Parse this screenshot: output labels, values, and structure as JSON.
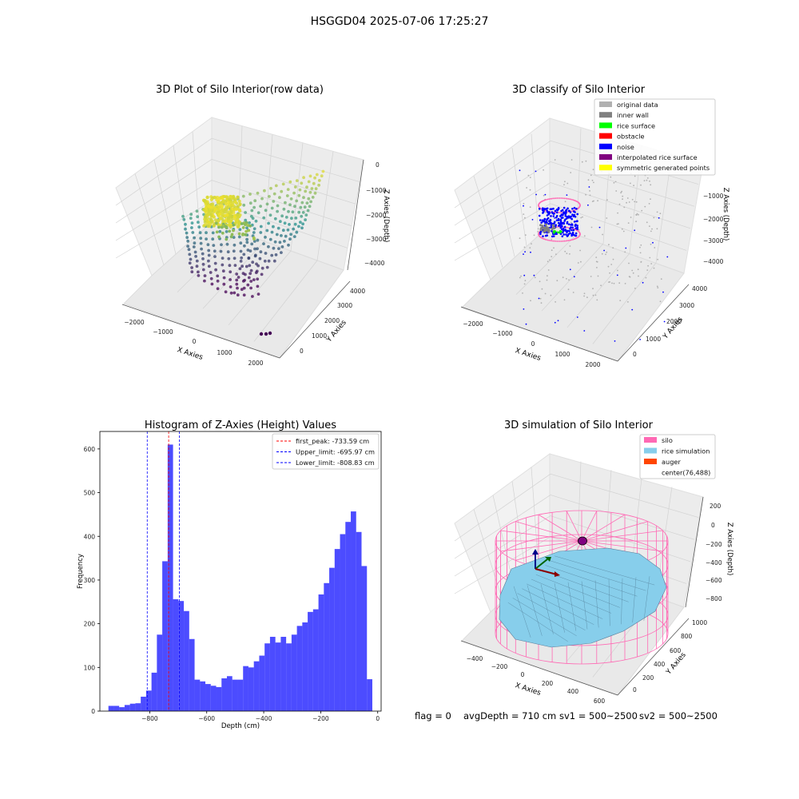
{
  "figure_title": "HSGGD04 2025-07-06 17:25:27",
  "footer": {
    "flag": "flag = 0",
    "avg_depth": "avgDepth = 710 cm",
    "sv1": "sv1 = 500~2500",
    "sv2": "sv2 = 500~2500"
  },
  "colors": {
    "viridis_low": "#440154",
    "viridis_mid": "#21908c",
    "viridis_high": "#fde725",
    "hist_bar": "#0000ff",
    "hist_bar_opacity": 0.7,
    "silo_wire": "#ff69b4",
    "rice_surface": "#87ceeb",
    "pane": "#f2f2f2",
    "grid": "#cccccc"
  },
  "chart_data": [
    {
      "id": "raw",
      "type": "scatter",
      "projection": "3d",
      "title": "3D Plot of Silo Interior(row data)",
      "xlabel": "X Axies",
      "ylabel": "Y Axies",
      "zlabel": "Z Axies (Depth)",
      "x_ticks": [
        "−2000",
        "−1000",
        "0",
        "1000",
        "2000"
      ],
      "y_ticks": [
        "0",
        "1000",
        "2000",
        "3000",
        "4000"
      ],
      "z_ticks": [
        "0",
        "−1000",
        "−2000",
        "−3000",
        "−4000"
      ],
      "colormap": "viridis (by depth)"
    },
    {
      "id": "classify",
      "type": "scatter",
      "projection": "3d",
      "title": "3D classify of Silo Interior",
      "xlabel": "X Axies",
      "ylabel": "Y Axies",
      "zlabel": "Z Axies (Depth)",
      "x_ticks": [
        "−2000",
        "−1000",
        "0",
        "1000",
        "2000"
      ],
      "y_ticks": [
        "0",
        "1000",
        "2000",
        "3000",
        "4000"
      ],
      "z_ticks": [
        "−1000",
        "−2000",
        "−3000",
        "−4000"
      ],
      "legend_position": "top-right",
      "legend": [
        {
          "label": "original data",
          "color": "#b0b0b0"
        },
        {
          "label": "inner wall",
          "color": "#808080"
        },
        {
          "label": "rice surface",
          "color": "#00ff00"
        },
        {
          "label": "obstacle",
          "color": "#ff0000"
        },
        {
          "label": "noise",
          "color": "#0000ff"
        },
        {
          "label": "interpolated rice surface",
          "color": "#800080"
        },
        {
          "label": "symmetric generated points",
          "color": "#ffff00"
        }
      ]
    },
    {
      "id": "hist",
      "type": "bar",
      "title": "Histogram of Z-Axies (Height) Values",
      "xlabel": "Depth (cm)",
      "ylabel": "Frequency",
      "xlim": [
        -975,
        12
      ],
      "ylim": [
        0,
        640
      ],
      "x_ticks": [
        -800,
        -600,
        -400,
        -200,
        0
      ],
      "x_tick_labels": [
        "−800",
        "−600",
        "−400",
        "−200",
        "0"
      ],
      "y_ticks": [
        0,
        100,
        200,
        300,
        400,
        500,
        600
      ],
      "bin_width": 18.9,
      "bin_start": -945,
      "values": [
        12,
        12,
        9,
        14,
        17,
        18,
        33,
        47,
        88,
        175,
        343,
        610,
        256,
        252,
        229,
        165,
        72,
        68,
        62,
        58,
        55,
        75,
        80,
        72,
        72,
        103,
        100,
        114,
        127,
        155,
        170,
        157,
        170,
        155,
        175,
        195,
        203,
        227,
        233,
        267,
        293,
        328,
        371,
        405,
        433,
        457,
        410,
        332,
        73
      ],
      "vlines": [
        {
          "x": -733.59,
          "label": "first_peak: -733.59 cm",
          "color": "#ff0000"
        },
        {
          "x": -695.97,
          "label": "Upper_limit: -695.97 cm",
          "color": "#0000ff"
        },
        {
          "x": -808.83,
          "label": "Lower_limit: -808.83 cm",
          "color": "#0000ff"
        }
      ],
      "legend_position": "top-right"
    },
    {
      "id": "sim",
      "type": "surface",
      "projection": "3d",
      "title": "3D simulation of Silo Interior",
      "xlabel": "X Axies",
      "ylabel": "Y Axies",
      "zlabel": "Z Axies (Depth)",
      "x_ticks": [
        "−400",
        "−200",
        "0",
        "200",
        "400",
        "600"
      ],
      "y_ticks": [
        "0",
        "200",
        "400",
        "600",
        "800",
        "1000"
      ],
      "z_ticks": [
        "200",
        "0",
        "−200",
        "−400",
        "−600",
        "−800"
      ],
      "legend_position": "top-right",
      "legend": [
        {
          "label": "silo",
          "color": "#ff69b4"
        },
        {
          "label": "rice simulation",
          "color": "#87ceeb"
        },
        {
          "label": "auger",
          "color": "#ff4500"
        },
        {
          "label": "center(76,488)",
          "color": ""
        }
      ]
    }
  ]
}
